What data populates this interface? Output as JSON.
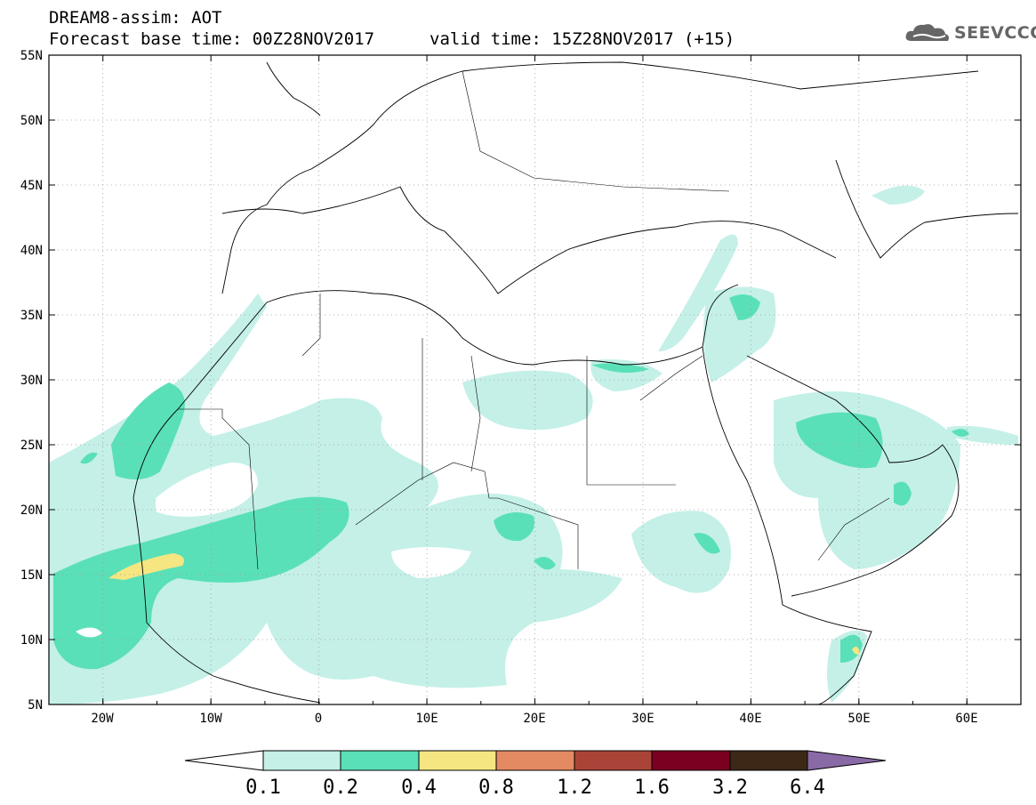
{
  "header": {
    "model_title": "DREAM8-assim: AOT",
    "base_time": "Forecast base time: 00Z28NOV2017",
    "valid_time": "valid time: 15Z28NOV2017 (+15)",
    "logo_text": "SEEVCCC"
  },
  "map": {
    "lon_range": [
      -25,
      65
    ],
    "lat_range": [
      5,
      55
    ],
    "lat_ticks": [
      "5N",
      "10N",
      "15N",
      "20N",
      "25N",
      "30N",
      "35N",
      "40N",
      "45N",
      "50N",
      "55N"
    ],
    "lon_ticks": [
      "20W",
      "10W",
      "0",
      "10E",
      "20E",
      "30E",
      "40E",
      "50E",
      "60E"
    ],
    "gridlines": "dotted"
  },
  "colorbar": {
    "levels": [
      "0.1",
      "0.2",
      "0.4",
      "0.8",
      "1.2",
      "1.6",
      "3.2",
      "6.4"
    ],
    "colors": [
      "#ffffff",
      "#c4f0e8",
      "#5ae0b8",
      "#f5e682",
      "#e38a62",
      "#aa4438",
      "#7a0022",
      "#3d2818",
      "#8a6aa6"
    ]
  }
}
